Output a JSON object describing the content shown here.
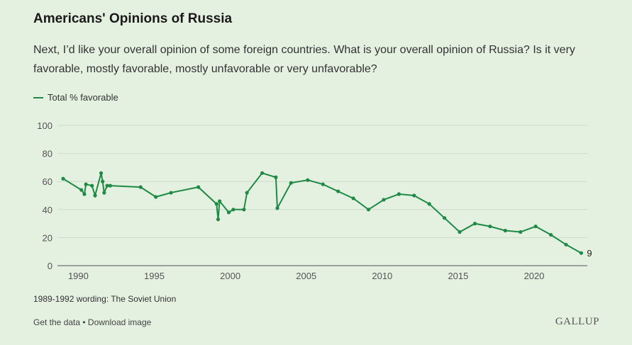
{
  "header": {
    "title": "Americans' Opinions of Russia",
    "subtitle": "Next, I’d like your overall opinion of some foreign countries. What is your overall opinion of Russia? Is it very favorable, mostly favorable, mostly unfavorable or very unfavorable?"
  },
  "footnote": "1989-1992 wording: The Soviet Union",
  "footer": {
    "get_data": "Get the data",
    "separator": " • ",
    "download": "Download image",
    "brand": "GALLUP"
  },
  "colors": {
    "line": "#1f8a45",
    "background": "#e4f0e0",
    "grid": "#cfdcca"
  },
  "chart_data": {
    "type": "line",
    "series": [
      {
        "name": "Total % favorable",
        "x": [
          1989.0,
          1990.2,
          1990.4,
          1990.5,
          1990.9,
          1991.1,
          1991.5,
          1991.6,
          1991.7,
          1991.9,
          1992.1,
          1994.1,
          1995.1,
          1996.1,
          1997.9,
          1999.1,
          1999.2,
          1999.3,
          1999.9,
          2000.2,
          2000.9,
          2001.1,
          2002.1,
          2003.0,
          2003.1,
          2004.0,
          2005.1,
          2006.1,
          2007.1,
          2008.1,
          2009.1,
          2010.1,
          2011.1,
          2012.1,
          2013.1,
          2014.1,
          2015.1,
          2016.1,
          2017.1,
          2018.1,
          2019.1,
          2020.1,
          2021.1,
          2022.1,
          2023.1
        ],
        "y": [
          62,
          54,
          51,
          58,
          57,
          50,
          66,
          60,
          52,
          57,
          57,
          56,
          49,
          52,
          56,
          44,
          33,
          46,
          38,
          40,
          40,
          52,
          66,
          63,
          41,
          59,
          61,
          58,
          53,
          48,
          40,
          47,
          51,
          50,
          44,
          34,
          24,
          30,
          28,
          25,
          24,
          28,
          22,
          15,
          9
        ]
      }
    ],
    "end_label": "9",
    "xlim": [
      1989,
      2023.5
    ],
    "ylim": [
      0,
      100
    ],
    "x_ticks": [
      1990,
      1995,
      2000,
      2005,
      2010,
      2015,
      2020
    ],
    "y_ticks": [
      0,
      20,
      40,
      60,
      80,
      100
    ],
    "grid": "horizontal",
    "legend": "top-left"
  }
}
